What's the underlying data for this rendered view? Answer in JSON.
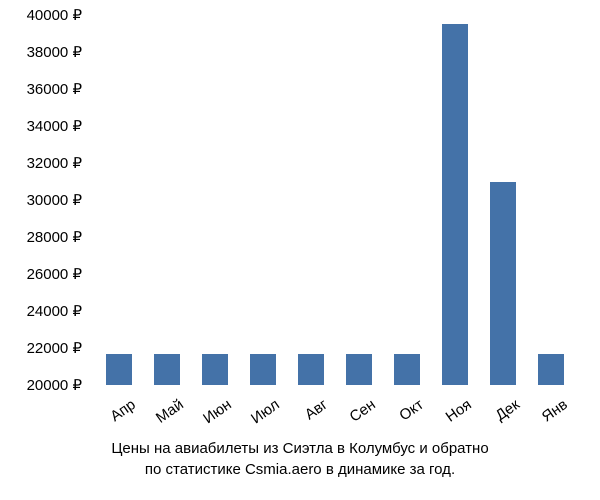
{
  "chart": {
    "type": "bar",
    "categories": [
      "Апр",
      "Май",
      "Июн",
      "Июл",
      "Авг",
      "Сен",
      "Окт",
      "Ноя",
      "Дек",
      "Янв"
    ],
    "values": [
      21700,
      21700,
      21700,
      21700,
      21700,
      21700,
      21700,
      39500,
      31000,
      21700
    ],
    "bar_color": "#4472a8",
    "ylim": [
      20000,
      40000
    ],
    "ytick_step": 2000,
    "y_suffix": " ₽",
    "label_fontsize": 15,
    "background_color": "#ffffff",
    "bar_width_ratio": 0.55,
    "x_label_rotation": -35
  },
  "caption": {
    "line1": "Цены на авиабилеты из Сиэтла в Колумбус и обратно",
    "line2": "по статистике Csmia.aero в динамике за год."
  }
}
